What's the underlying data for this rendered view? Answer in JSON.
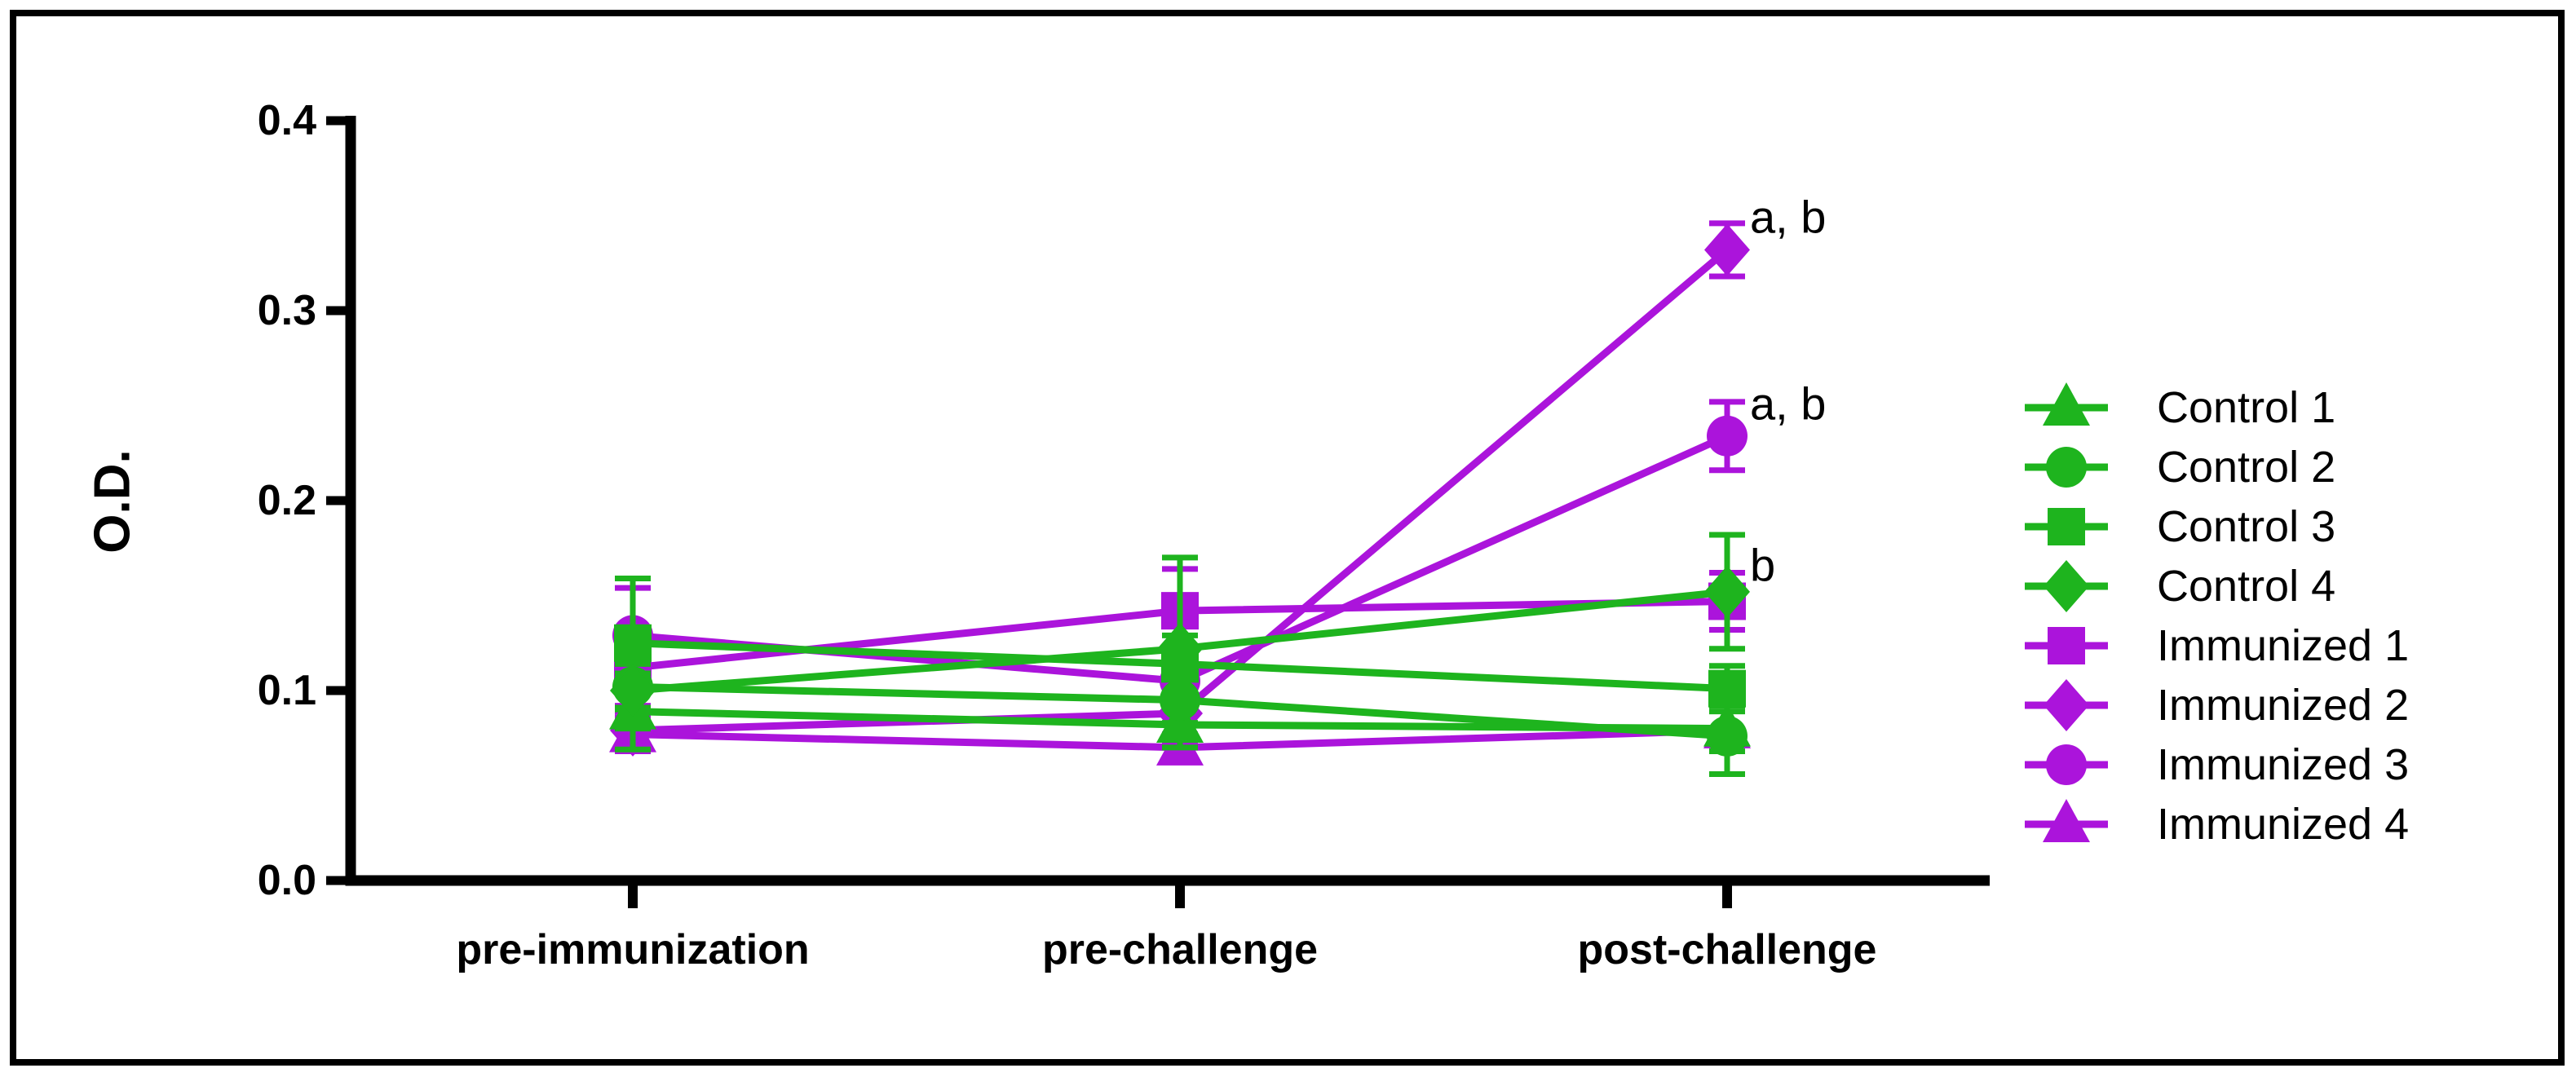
{
  "figure": {
    "background": "#ffffff",
    "border_color": "#000000",
    "axis_color": "#000000"
  },
  "chart_data": {
    "type": "line",
    "title": "",
    "xlabel": "",
    "ylabel": "O.D.",
    "ylim": [
      0.0,
      0.4
    ],
    "yticks": [
      0.0,
      0.1,
      0.2,
      0.3,
      0.4
    ],
    "ytick_labels": [
      "0.0",
      "0.1",
      "0.2",
      "0.3",
      "0.4"
    ],
    "categories": [
      "pre-immunization",
      "pre-challenge",
      "post-challenge"
    ],
    "grid": false,
    "legend_position": "right-center",
    "colors": {
      "control": "#1eb41e",
      "immunized": "#ab14db"
    },
    "series": [
      {
        "name": "Control 1",
        "group": "control",
        "marker": "triangle",
        "values": [
          0.089,
          0.082,
          0.08
        ],
        "errors": [
          0.02,
          0.012,
          0.012
        ]
      },
      {
        "name": "Control 2",
        "group": "control",
        "marker": "circle",
        "values": [
          0.102,
          0.095,
          0.076
        ],
        "errors": [
          0.012,
          0.012,
          0.02
        ]
      },
      {
        "name": "Control 3",
        "group": "control",
        "marker": "square",
        "values": [
          0.125,
          0.114,
          0.101
        ],
        "errors": [
          0.034,
          0.015,
          0.012
        ]
      },
      {
        "name": "Control 4",
        "group": "control",
        "marker": "diamond",
        "values": [
          0.1,
          0.122,
          0.152
        ],
        "errors": [
          0.02,
          0.048,
          0.03
        ]
      },
      {
        "name": "Immunized 1",
        "group": "immunized",
        "marker": "square",
        "values": [
          0.112,
          0.142,
          0.147
        ],
        "errors": [
          0.02,
          0.022,
          0.015
        ]
      },
      {
        "name": "Immunized 2",
        "group": "immunized",
        "marker": "diamond",
        "values": [
          0.079,
          0.088,
          0.332
        ],
        "errors": [
          0.01,
          0.015,
          0.014
        ]
      },
      {
        "name": "Immunized 3",
        "group": "immunized",
        "marker": "circle",
        "values": [
          0.129,
          0.105,
          0.234
        ],
        "errors": [
          0.025,
          0.015,
          0.018
        ]
      },
      {
        "name": "Immunized 4",
        "group": "immunized",
        "marker": "triangle",
        "values": [
          0.077,
          0.07,
          0.079
        ],
        "errors": [
          0.009,
          0.007,
          0.023
        ]
      }
    ],
    "draw_order": [
      "Immunized 4",
      "Immunized 3",
      "Immunized 2",
      "Immunized 1",
      "Control 1",
      "Control 2",
      "Control 3",
      "Control 4"
    ],
    "annotations": [
      {
        "text": "a, b",
        "series": "Immunized 2",
        "category_index": 2,
        "dy": 0
      },
      {
        "text": "a, b",
        "series": "Immunized 3",
        "category_index": 2,
        "dy": 10
      },
      {
        "text": "b",
        "series": "Control 4",
        "category_index": 2,
        "dy": 45
      }
    ]
  }
}
